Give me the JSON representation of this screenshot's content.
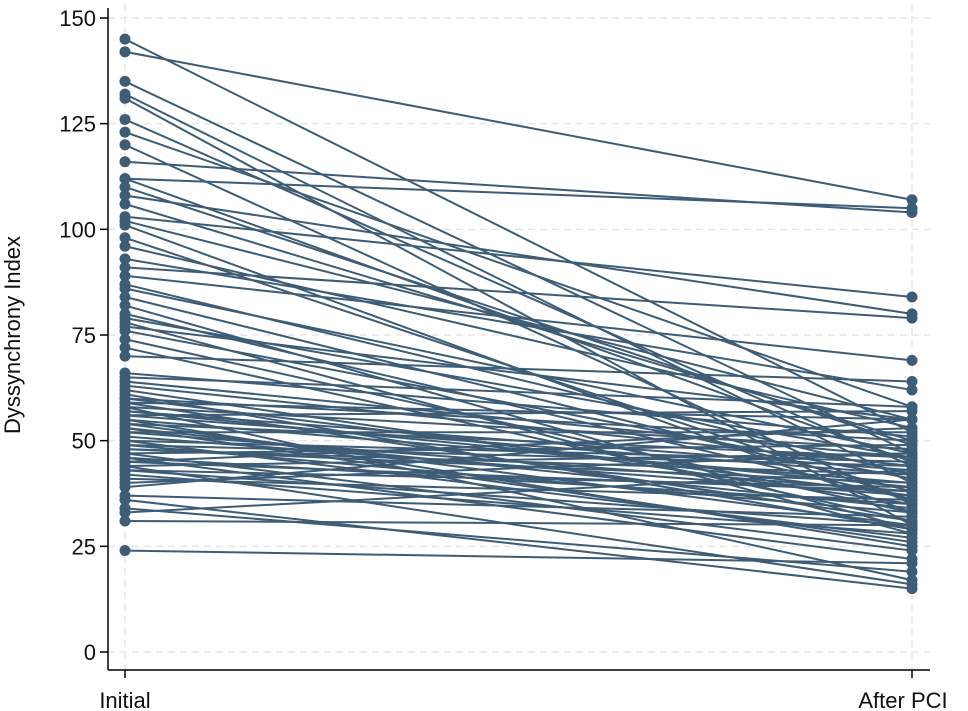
{
  "chart_data": {
    "type": "line",
    "title": "",
    "xlabel": "",
    "ylabel": "Dyssynchrony Index",
    "categories": [
      "Initial",
      "After PCI"
    ],
    "yticks": [
      "0",
      "25",
      "50",
      "75",
      "100",
      "125",
      "150"
    ],
    "ylim": [
      0,
      150
    ],
    "grid": true,
    "legend": "none",
    "colors": {
      "series": "#3E5C76",
      "grid": "#e5e5e5",
      "axis": "#000000"
    },
    "pairs": [
      [
        145,
        52
      ],
      [
        142,
        107
      ],
      [
        135,
        47
      ],
      [
        132,
        40
      ],
      [
        131,
        30
      ],
      [
        123,
        58
      ],
      [
        120,
        35
      ],
      [
        116,
        104
      ],
      [
        112,
        105
      ],
      [
        112,
        45
      ],
      [
        108,
        80
      ],
      [
        106,
        50
      ],
      [
        103,
        84
      ],
      [
        102,
        55
      ],
      [
        101,
        33
      ],
      [
        93,
        62
      ],
      [
        91,
        79
      ],
      [
        89,
        69
      ],
      [
        87,
        42
      ],
      [
        84,
        38
      ],
      [
        80,
        36
      ],
      [
        79,
        46
      ],
      [
        78,
        28
      ],
      [
        77,
        55
      ],
      [
        76,
        41
      ],
      [
        74,
        33
      ],
      [
        70,
        64
      ],
      [
        65,
        58
      ],
      [
        63,
        44
      ],
      [
        61,
        29
      ],
      [
        60,
        50
      ],
      [
        59,
        31
      ],
      [
        58,
        48
      ],
      [
        57,
        39
      ],
      [
        56,
        57
      ],
      [
        55,
        40
      ],
      [
        54,
        46
      ],
      [
        53,
        26
      ],
      [
        52,
        52
      ],
      [
        51,
        37
      ],
      [
        50,
        45
      ],
      [
        49,
        33
      ],
      [
        48,
        42
      ],
      [
        47,
        49
      ],
      [
        46,
        35
      ],
      [
        45,
        38
      ],
      [
        44,
        47
      ],
      [
        43,
        30
      ],
      [
        41,
        36
      ],
      [
        39,
        55
      ],
      [
        37,
        32
      ],
      [
        34,
        19
      ],
      [
        33,
        43
      ],
      [
        31,
        30
      ],
      [
        24,
        21
      ],
      [
        62,
        35
      ],
      [
        58,
        17
      ],
      [
        55,
        25
      ],
      [
        53,
        34
      ],
      [
        50,
        27
      ],
      [
        48,
        40
      ],
      [
        46,
        22
      ],
      [
        44,
        16
      ],
      [
        42,
        28
      ],
      [
        64,
        46
      ],
      [
        57,
        43
      ],
      [
        52,
        38
      ],
      [
        60,
        37
      ],
      [
        86,
        47
      ],
      [
        72,
        31
      ],
      [
        98,
        36
      ],
      [
        110,
        49
      ],
      [
        126,
        44
      ],
      [
        96,
        53
      ],
      [
        82,
        29
      ],
      [
        66,
        51
      ],
      [
        54,
        30
      ],
      [
        49,
        44
      ],
      [
        45,
        53
      ],
      [
        40,
        47
      ],
      [
        36,
        15
      ],
      [
        47,
        24
      ],
      [
        56,
        42
      ],
      [
        59,
        55
      ],
      [
        43,
        39
      ]
    ]
  }
}
